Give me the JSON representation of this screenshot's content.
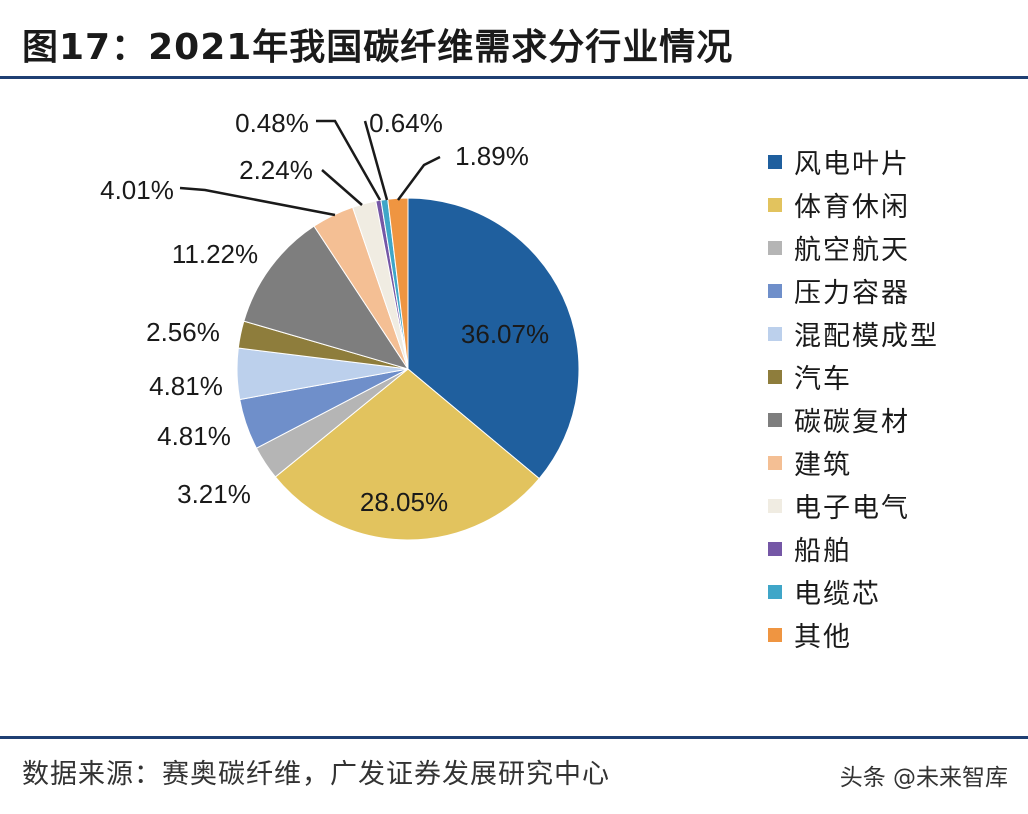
{
  "title": "图17：2021年我国碳纤维需求分行业情况",
  "source": "数据来源：赛奥碳纤维，广发证券发展研究中心",
  "watermark": "头条 @未来智库",
  "chart_data": {
    "type": "pie",
    "title": "图17：2021年我国碳纤维需求分行业情况",
    "unit": "%",
    "legend_position": "right",
    "start": "12 o'clock, clockwise",
    "slices": [
      {
        "name": "风电叶片",
        "value": 36.07,
        "label": "36.07%",
        "color": "#1f5f9e"
      },
      {
        "name": "体育休闲",
        "value": 28.05,
        "label": "28.05%",
        "color": "#e2c35e"
      },
      {
        "name": "航空航天",
        "value": 3.21,
        "label": "3.21%",
        "color": "#b5b5b5"
      },
      {
        "name": "压力容器",
        "value": 4.81,
        "label": "4.81%",
        "color": "#6f8fca"
      },
      {
        "name": "混配模成型",
        "value": 4.81,
        "label": "4.81%",
        "color": "#bcd0ec"
      },
      {
        "name": "汽车",
        "value": 2.56,
        "label": "2.56%",
        "color": "#8e7d3c"
      },
      {
        "name": "碳碳复材",
        "value": 11.22,
        "label": "11.22%",
        "color": "#7e7e7e"
      },
      {
        "name": "建筑",
        "value": 4.01,
        "label": "4.01%",
        "color": "#f4bf94"
      },
      {
        "name": "电子电气",
        "value": 2.24,
        "label": "2.24%",
        "color": "#f0ece2"
      },
      {
        "name": "船舶",
        "value": 0.48,
        "label": "0.48%",
        "color": "#7557a6"
      },
      {
        "name": "电缆芯",
        "value": 0.64,
        "label": "0.64%",
        "color": "#3fa6c8"
      },
      {
        "name": "其他",
        "value": 1.89,
        "label": "1.89%",
        "color": "#ef9541"
      }
    ]
  }
}
